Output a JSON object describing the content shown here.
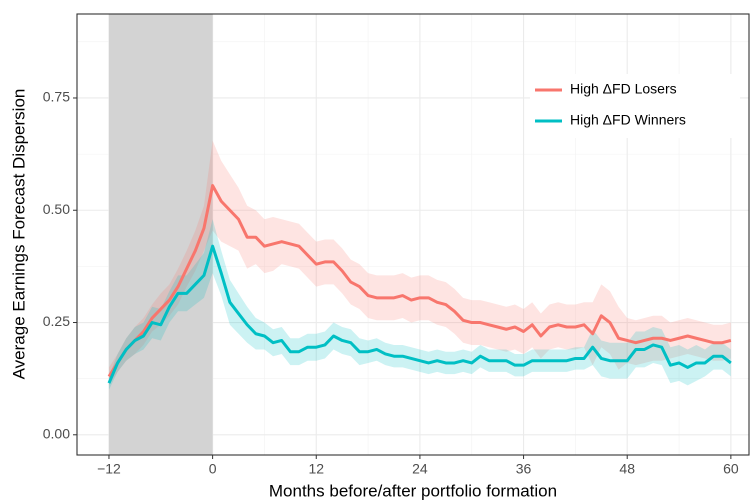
{
  "chart_data": {
    "type": "line",
    "xlabel": "Months before/after portfolio formation",
    "ylabel": "Average Earnings Forecast Dispersion",
    "x": [
      -12,
      -11,
      -10,
      -9,
      -8,
      -7,
      -6,
      -5,
      -4,
      -3,
      -2,
      -1,
      0,
      1,
      2,
      3,
      4,
      5,
      6,
      7,
      8,
      9,
      10,
      11,
      12,
      13,
      14,
      15,
      16,
      17,
      18,
      19,
      20,
      21,
      22,
      23,
      24,
      25,
      26,
      27,
      28,
      29,
      30,
      31,
      32,
      33,
      34,
      35,
      36,
      37,
      38,
      39,
      40,
      41,
      42,
      43,
      44,
      45,
      46,
      47,
      48,
      49,
      50,
      51,
      52,
      53,
      54,
      55,
      56,
      57,
      58,
      59,
      60
    ],
    "shaded_region": [
      -12,
      0
    ],
    "shaded_color": "#d3d3d3",
    "series": [
      {
        "name": "High ΔFD Losers",
        "color": "#F8766D",
        "values": [
          0.13,
          0.16,
          0.19,
          0.21,
          0.23,
          0.26,
          0.28,
          0.3,
          0.33,
          0.37,
          0.41,
          0.46,
          0.555,
          0.52,
          0.5,
          0.48,
          0.44,
          0.44,
          0.42,
          0.425,
          0.43,
          0.425,
          0.42,
          0.4,
          0.38,
          0.385,
          0.385,
          0.365,
          0.34,
          0.33,
          0.31,
          0.305,
          0.305,
          0.305,
          0.31,
          0.3,
          0.305,
          0.305,
          0.295,
          0.29,
          0.275,
          0.255,
          0.25,
          0.25,
          0.245,
          0.24,
          0.235,
          0.24,
          0.23,
          0.245,
          0.22,
          0.24,
          0.245,
          0.24,
          0.24,
          0.245,
          0.225,
          0.265,
          0.25,
          0.215,
          0.21,
          0.205,
          0.21,
          0.215,
          0.215,
          0.21,
          0.215,
          0.22,
          0.215,
          0.21,
          0.205,
          0.205,
          0.21
        ],
        "lower": [
          0.11,
          0.14,
          0.165,
          0.18,
          0.2,
          0.23,
          0.245,
          0.265,
          0.29,
          0.33,
          0.365,
          0.41,
          0.455,
          0.43,
          0.42,
          0.41,
          0.37,
          0.38,
          0.36,
          0.365,
          0.38,
          0.375,
          0.37,
          0.35,
          0.33,
          0.335,
          0.335,
          0.315,
          0.29,
          0.28,
          0.26,
          0.255,
          0.255,
          0.255,
          0.26,
          0.25,
          0.255,
          0.255,
          0.245,
          0.24,
          0.225,
          0.205,
          0.2,
          0.2,
          0.195,
          0.19,
          0.185,
          0.19,
          0.18,
          0.195,
          0.17,
          0.19,
          0.195,
          0.19,
          0.19,
          0.195,
          0.155,
          0.195,
          0.18,
          0.145,
          0.16,
          0.155,
          0.16,
          0.165,
          0.165,
          0.17,
          0.175,
          0.18,
          0.175,
          0.17,
          0.165,
          0.165,
          0.17
        ],
        "upper": [
          0.15,
          0.18,
          0.215,
          0.24,
          0.26,
          0.29,
          0.315,
          0.335,
          0.37,
          0.41,
          0.455,
          0.51,
          0.655,
          0.61,
          0.58,
          0.55,
          0.51,
          0.5,
          0.48,
          0.485,
          0.48,
          0.475,
          0.47,
          0.45,
          0.43,
          0.435,
          0.435,
          0.415,
          0.39,
          0.38,
          0.36,
          0.355,
          0.355,
          0.355,
          0.36,
          0.35,
          0.355,
          0.355,
          0.345,
          0.34,
          0.325,
          0.305,
          0.3,
          0.3,
          0.295,
          0.29,
          0.285,
          0.29,
          0.28,
          0.295,
          0.27,
          0.29,
          0.295,
          0.29,
          0.29,
          0.295,
          0.295,
          0.335,
          0.32,
          0.285,
          0.26,
          0.255,
          0.26,
          0.265,
          0.265,
          0.25,
          0.255,
          0.26,
          0.255,
          0.25,
          0.245,
          0.245,
          0.25
        ]
      },
      {
        "name": "High ΔFD Winners",
        "color": "#00BFC4",
        "values": [
          0.115,
          0.16,
          0.19,
          0.21,
          0.22,
          0.25,
          0.245,
          0.285,
          0.315,
          0.315,
          0.335,
          0.355,
          0.42,
          0.36,
          0.295,
          0.27,
          0.245,
          0.225,
          0.22,
          0.205,
          0.21,
          0.185,
          0.185,
          0.195,
          0.195,
          0.2,
          0.22,
          0.21,
          0.205,
          0.185,
          0.185,
          0.19,
          0.18,
          0.175,
          0.175,
          0.17,
          0.165,
          0.16,
          0.165,
          0.16,
          0.16,
          0.165,
          0.16,
          0.175,
          0.165,
          0.165,
          0.165,
          0.155,
          0.155,
          0.165,
          0.165,
          0.165,
          0.165,
          0.165,
          0.17,
          0.17,
          0.195,
          0.17,
          0.165,
          0.165,
          0.165,
          0.19,
          0.19,
          0.2,
          0.195,
          0.155,
          0.16,
          0.15,
          0.16,
          0.16,
          0.175,
          0.175,
          0.16
        ],
        "lower": [
          0.1,
          0.14,
          0.165,
          0.18,
          0.19,
          0.215,
          0.21,
          0.25,
          0.275,
          0.275,
          0.29,
          0.305,
          0.36,
          0.31,
          0.245,
          0.225,
          0.205,
          0.19,
          0.19,
          0.175,
          0.18,
          0.155,
          0.155,
          0.165,
          0.165,
          0.17,
          0.19,
          0.18,
          0.175,
          0.155,
          0.16,
          0.165,
          0.155,
          0.15,
          0.15,
          0.145,
          0.14,
          0.135,
          0.14,
          0.135,
          0.135,
          0.14,
          0.135,
          0.15,
          0.14,
          0.14,
          0.14,
          0.13,
          0.13,
          0.14,
          0.14,
          0.14,
          0.14,
          0.14,
          0.145,
          0.145,
          0.155,
          0.13,
          0.125,
          0.125,
          0.125,
          0.15,
          0.15,
          0.16,
          0.155,
          0.115,
          0.12,
          0.11,
          0.12,
          0.13,
          0.145,
          0.145,
          0.13
        ],
        "upper": [
          0.13,
          0.18,
          0.215,
          0.24,
          0.25,
          0.285,
          0.28,
          0.32,
          0.355,
          0.355,
          0.38,
          0.405,
          0.48,
          0.41,
          0.345,
          0.315,
          0.285,
          0.26,
          0.25,
          0.235,
          0.24,
          0.215,
          0.215,
          0.225,
          0.225,
          0.23,
          0.25,
          0.24,
          0.235,
          0.215,
          0.21,
          0.215,
          0.205,
          0.2,
          0.2,
          0.195,
          0.19,
          0.185,
          0.19,
          0.185,
          0.185,
          0.19,
          0.185,
          0.2,
          0.19,
          0.19,
          0.19,
          0.18,
          0.18,
          0.19,
          0.19,
          0.19,
          0.19,
          0.19,
          0.195,
          0.195,
          0.235,
          0.21,
          0.205,
          0.205,
          0.205,
          0.23,
          0.23,
          0.24,
          0.235,
          0.195,
          0.2,
          0.19,
          0.2,
          0.19,
          0.205,
          0.205,
          0.19
        ]
      }
    ],
    "xlim": [
      -15.7,
      62.1
    ],
    "ylim": [
      -0.045,
      0.937
    ],
    "xticks": [
      {
        "value": -12,
        "label": "−12"
      },
      0,
      12,
      24,
      36,
      48,
      60
    ],
    "yticks": [
      {
        "value": 0,
        "label": "0.00"
      },
      {
        "value": 0.25,
        "label": "0.25"
      },
      {
        "value": 0.5,
        "label": "0.50"
      },
      {
        "value": 0.75,
        "label": "0.75"
      }
    ],
    "x_minor_ticks": [
      -6,
      6,
      18,
      30,
      42,
      54
    ],
    "y_minor_ticks": [
      0.125,
      0.375,
      0.625,
      0.875
    ],
    "grid": true,
    "legend": "top-right"
  }
}
